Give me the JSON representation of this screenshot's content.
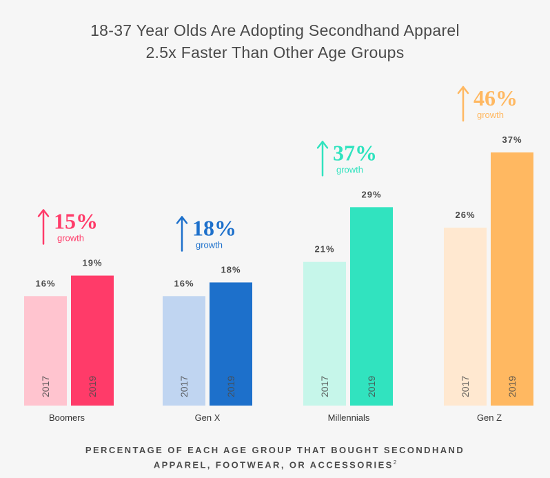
{
  "chart_data": {
    "type": "bar",
    "title": [
      "18-37 Year Olds Are Adopting Secondhand Apparel",
      "2.5x Faster Than Other Age Groups"
    ],
    "footnote": [
      "PERCENTAGE OF EACH AGE GROUP THAT BOUGHT SECONDHAND",
      "APPAREL, FOOTWEAR, OR ACCESSORIES"
    ],
    "footnote_ref": "2",
    "categories": [
      "Boomers",
      "Gen X",
      "Millennials",
      "Gen Z"
    ],
    "years": [
      "2017",
      "2019"
    ],
    "series": [
      {
        "values": [
          16,
          16,
          21,
          26
        ],
        "labels": [
          "16%",
          "16%",
          "21%",
          "26%"
        ]
      },
      {
        "values": [
          19,
          18,
          29,
          37
        ],
        "labels": [
          "19%",
          "18%",
          "29%",
          "37%"
        ]
      }
    ],
    "growth": {
      "values": [
        "15%",
        "18%",
        "37%",
        "46%"
      ],
      "word": "growth"
    },
    "colors": {
      "light": [
        "#ffc4cf",
        "#c0d5f1",
        "#c6f6ea",
        "#ffe8d0"
      ],
      "dark": [
        "#ff3b69",
        "#1d70cb",
        "#31e3bf",
        "#ffb861"
      ],
      "accent": [
        "#ff3b69",
        "#1d70cb",
        "#31e3bf",
        "#ffb861"
      ]
    },
    "ylim": [
      0,
      37
    ]
  }
}
